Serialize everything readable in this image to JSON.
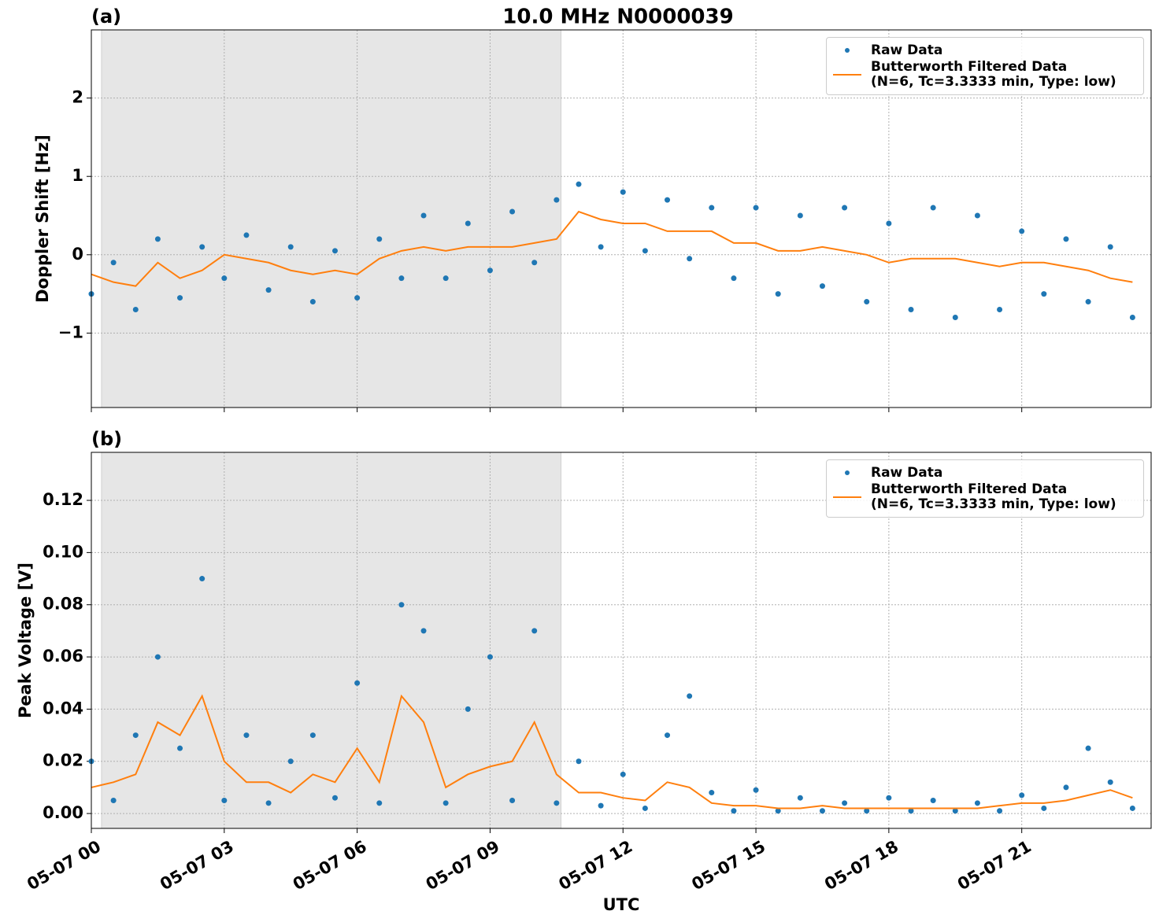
{
  "title": "10.0 MHz N0000039",
  "xlabel": "UTC",
  "chart_data": [
    {
      "type": "scatter",
      "panel_label": "(a)",
      "ylabel": "Doppler Shift [Hz]",
      "xlim": [
        0,
        23.92
      ],
      "ylim": [
        -1.95,
        2.87
      ],
      "xticks": [
        {
          "value": 0,
          "label": "05-07 00"
        },
        {
          "value": 3,
          "label": "05-07 03"
        },
        {
          "value": 6,
          "label": "05-07 06"
        },
        {
          "value": 9,
          "label": "05-07 09"
        },
        {
          "value": 12,
          "label": "05-07 12"
        },
        {
          "value": 15,
          "label": "05-07 15"
        },
        {
          "value": 18,
          "label": "05-07 18"
        },
        {
          "value": 21,
          "label": "05-07 21"
        }
      ],
      "yticks": [
        {
          "value": -1,
          "label": "−1"
        },
        0,
        1,
        2
      ],
      "grid": true,
      "legend": "upper right",
      "shaded_span": [
        0.23,
        10.6
      ],
      "x": [
        0,
        0.5,
        1,
        1.5,
        2,
        2.5,
        3,
        3.5,
        4,
        4.5,
        5,
        5.5,
        6,
        6.5,
        7,
        7.5,
        8,
        8.5,
        9,
        9.5,
        10,
        10.5,
        11,
        11.5,
        12,
        12.5,
        13,
        13.5,
        14,
        14.5,
        15,
        15.5,
        16,
        16.5,
        17,
        17.5,
        18,
        18.5,
        19,
        19.5,
        20,
        20.5,
        21,
        21.5,
        22,
        22.5,
        23,
        23.5
      ],
      "series": [
        {
          "name": "Raw Data",
          "style": "points",
          "color": "#1f77b4",
          "values": [
            -0.5,
            -0.1,
            -0.7,
            0.2,
            -0.55,
            0.1,
            -0.3,
            0.25,
            -0.45,
            0.1,
            -0.6,
            0.05,
            -0.55,
            0.2,
            -0.3,
            0.5,
            -0.3,
            0.4,
            -0.2,
            0.55,
            -0.1,
            0.7,
            0.9,
            0.1,
            0.8,
            0.05,
            0.7,
            -0.05,
            0.6,
            -0.3,
            0.6,
            -0.5,
            0.5,
            -0.4,
            0.6,
            -0.6,
            0.4,
            -0.7,
            0.6,
            -0.8,
            0.5,
            -0.7,
            0.3,
            -0.5,
            0.2,
            -0.6,
            0.1,
            -0.8
          ]
        },
        {
          "name": "Butterworth Filtered Data\n(N=6, Tc=3.3333 min, Type: low)",
          "style": "line",
          "color": "#ff7f0e",
          "values": [
            -0.25,
            -0.35,
            -0.4,
            -0.1,
            -0.3,
            -0.2,
            0.0,
            -0.05,
            -0.1,
            -0.2,
            -0.25,
            -0.2,
            -0.25,
            -0.05,
            0.05,
            0.1,
            0.05,
            0.1,
            0.1,
            0.1,
            0.15,
            0.2,
            0.55,
            0.45,
            0.4,
            0.4,
            0.3,
            0.3,
            0.3,
            0.15,
            0.15,
            0.05,
            0.05,
            0.1,
            0.05,
            0.0,
            -0.1,
            -0.05,
            -0.05,
            -0.05,
            -0.1,
            -0.15,
            -0.1,
            -0.1,
            -0.15,
            -0.2,
            -0.3,
            -0.35
          ]
        }
      ]
    },
    {
      "type": "scatter",
      "panel_label": "(b)",
      "ylabel": "Peak Voltage [V]",
      "xlim": [
        0,
        23.92
      ],
      "ylim": [
        -0.0057,
        0.1384
      ],
      "xticks": [
        {
          "value": 0,
          "label": "05-07 00"
        },
        {
          "value": 3,
          "label": "05-07 03"
        },
        {
          "value": 6,
          "label": "05-07 06"
        },
        {
          "value": 9,
          "label": "05-07 09"
        },
        {
          "value": 12,
          "label": "05-07 12"
        },
        {
          "value": 15,
          "label": "05-07 15"
        },
        {
          "value": 18,
          "label": "05-07 18"
        },
        {
          "value": 21,
          "label": "05-07 21"
        }
      ],
      "yticks": [
        {
          "value": 0,
          "label": "0.00"
        },
        {
          "value": 0.02,
          "label": "0.02"
        },
        {
          "value": 0.04,
          "label": "0.04"
        },
        {
          "value": 0.06,
          "label": "0.06"
        },
        {
          "value": 0.08,
          "label": "0.08"
        },
        {
          "value": 0.1,
          "label": "0.10"
        },
        {
          "value": 0.12,
          "label": "0.12"
        }
      ],
      "grid": true,
      "legend": "upper right",
      "shaded_span": [
        0.23,
        10.6
      ],
      "x": [
        0,
        0.5,
        1,
        1.5,
        2,
        2.5,
        3,
        3.5,
        4,
        4.5,
        5,
        5.5,
        6,
        6.5,
        7,
        7.5,
        8,
        8.5,
        9,
        9.5,
        10,
        10.5,
        11,
        11.5,
        12,
        12.5,
        13,
        13.5,
        14,
        14.5,
        15,
        15.5,
        16,
        16.5,
        17,
        17.5,
        18,
        18.5,
        19,
        19.5,
        20,
        20.5,
        21,
        21.5,
        22,
        22.5,
        23,
        23.5
      ],
      "series": [
        {
          "name": "Raw Data",
          "style": "points",
          "color": "#1f77b4",
          "values": [
            0.02,
            0.005,
            0.03,
            0.06,
            0.025,
            0.09,
            0.005,
            0.03,
            0.004,
            0.02,
            0.03,
            0.006,
            0.05,
            0.004,
            0.08,
            0.07,
            0.004,
            0.04,
            0.06,
            0.005,
            0.07,
            0.004,
            0.02,
            0.003,
            0.015,
            0.002,
            0.03,
            0.045,
            0.008,
            0.001,
            0.009,
            0.001,
            0.006,
            0.001,
            0.004,
            0.001,
            0.006,
            0.001,
            0.005,
            0.001,
            0.004,
            0.001,
            0.007,
            0.002,
            0.01,
            0.025,
            0.012,
            0.002
          ]
        },
        {
          "name": "Butterworth Filtered Data\n(N=6, Tc=3.3333 min, Type: low)",
          "style": "line",
          "color": "#ff7f0e",
          "values": [
            0.01,
            0.012,
            0.015,
            0.035,
            0.03,
            0.045,
            0.02,
            0.012,
            0.012,
            0.008,
            0.015,
            0.012,
            0.025,
            0.012,
            0.045,
            0.035,
            0.01,
            0.015,
            0.018,
            0.02,
            0.035,
            0.015,
            0.008,
            0.008,
            0.006,
            0.005,
            0.012,
            0.01,
            0.004,
            0.003,
            0.003,
            0.002,
            0.002,
            0.003,
            0.002,
            0.002,
            0.002,
            0.002,
            0.002,
            0.002,
            0.002,
            0.003,
            0.004,
            0.004,
            0.005,
            0.007,
            0.009,
            0.006
          ]
        }
      ]
    }
  ]
}
